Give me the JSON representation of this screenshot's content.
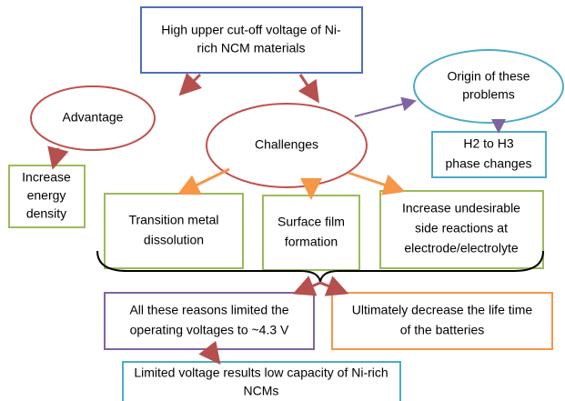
{
  "nodes": [
    {
      "lines": [
        "High upper cut-off voltage of Ni-",
        "rich NCM materials"
      ]
    },
    {
      "lines": [
        "Advantage"
      ]
    },
    {
      "lines": [
        "Challenges"
      ]
    },
    {
      "lines": [
        "Origin of these",
        "problems"
      ]
    },
    {
      "lines": [
        "H2 to H3",
        "phase changes"
      ]
    },
    {
      "lines": [
        "Increase",
        "energy",
        "density"
      ]
    },
    {
      "lines": [
        "Transition metal",
        "dissolution"
      ]
    },
    {
      "lines": [
        "Surface film",
        "formation"
      ]
    },
    {
      "lines": [
        "Increase undesirable",
        "side reactions at",
        "electrode/electrolyte"
      ]
    },
    {
      "lines": [
        "All these reasons limited the",
        "operating voltages to ~4.3 V"
      ]
    },
    {
      "lines": [
        "Ultimately decrease the life time",
        "of the batteries"
      ]
    },
    {
      "lines": [
        "Limited voltage results low capacity of Ni-rich",
        "NCMs"
      ]
    }
  ]
}
